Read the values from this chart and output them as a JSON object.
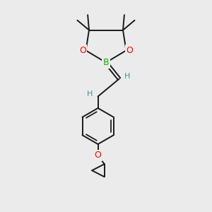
{
  "bg_color": "#ebebeb",
  "atom_colors": {
    "C": "#1a1a1a",
    "B": "#00bb00",
    "O": "#ff0000",
    "H": "#4a9090"
  },
  "bond_color": "#1a1a1a",
  "bond_width": 1.4,
  "figsize": [
    3.0,
    3.0
  ],
  "dpi": 100
}
